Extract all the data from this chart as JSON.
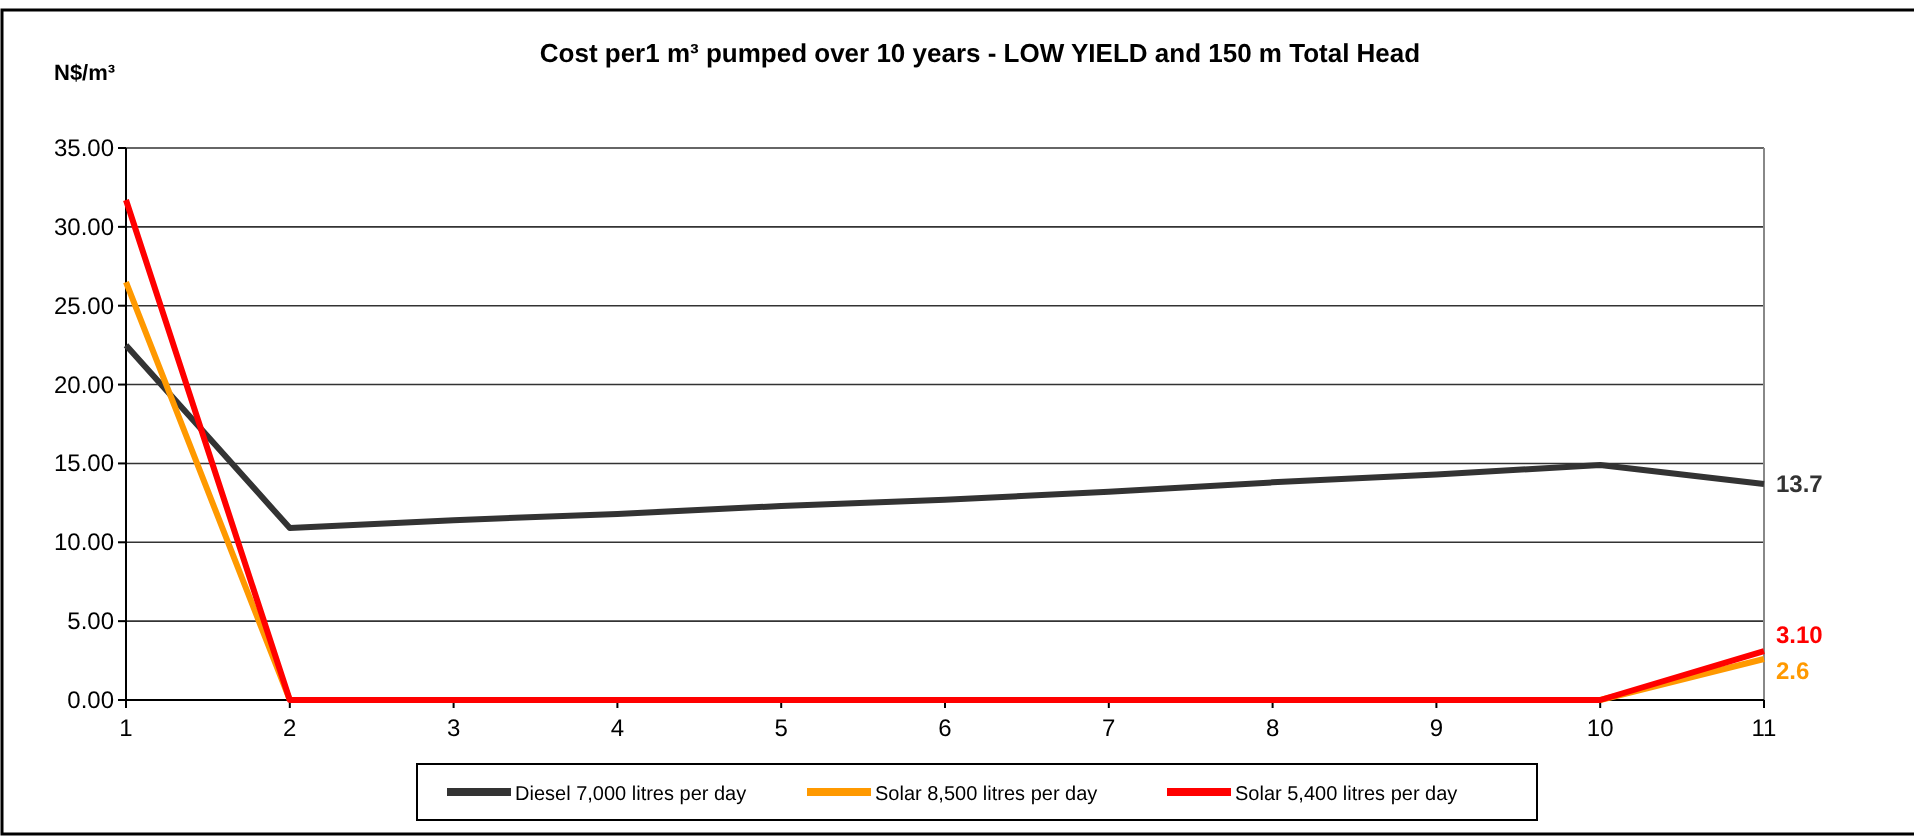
{
  "chart_data": {
    "type": "line",
    "title": "Cost per1 m³ pumped over 10 years - LOW YIELD and 150 m Total Head",
    "ylabel": "N$/m³",
    "x": [
      1,
      2,
      3,
      4,
      5,
      6,
      7,
      8,
      9,
      10,
      11
    ],
    "xlim": [
      1,
      11
    ],
    "xticks": [
      1,
      2,
      3,
      4,
      5,
      6,
      7,
      8,
      9,
      10,
      11
    ],
    "ylim": [
      0,
      35
    ],
    "yticks": [
      {
        "value": 0,
        "label": "0.00"
      },
      {
        "value": 5,
        "label": "5.00"
      },
      {
        "value": 10,
        "label": "10.00"
      },
      {
        "value": 15,
        "label": "15.00"
      },
      {
        "value": 20,
        "label": "20.00"
      },
      {
        "value": 25,
        "label": "25.00"
      },
      {
        "value": 30,
        "label": "30.00"
      },
      {
        "value": 35,
        "label": "35.00"
      }
    ],
    "grid": "y",
    "legend": "bottom",
    "marker": "none",
    "line_style": "solid",
    "series": [
      {
        "name": "Diesel 7,000 litres per day",
        "color": "#333333",
        "values": [
          22.5,
          10.9,
          11.4,
          11.8,
          12.3,
          12.7,
          13.2,
          13.8,
          14.3,
          14.9,
          13.7
        ],
        "value_labels": [
          null,
          null,
          null,
          null,
          null,
          null,
          null,
          null,
          null,
          null,
          "13.7"
        ]
      },
      {
        "name": "Solar 8,500 litres per day",
        "color": "#ff9900",
        "values": [
          26.5,
          0,
          null,
          null,
          null,
          null,
          null,
          null,
          null,
          0,
          2.6
        ],
        "value_labels": [
          null,
          null,
          null,
          null,
          null,
          null,
          null,
          null,
          null,
          null,
          "2.6"
        ]
      },
      {
        "name": "Solar 5,400 litres per day",
        "color": "#ff0000",
        "values": [
          31.7,
          0,
          0,
          0,
          0,
          0,
          0,
          0,
          0,
          0,
          3.1
        ],
        "value_labels": [
          null,
          null,
          null,
          null,
          null,
          null,
          null,
          null,
          null,
          null,
          "3.10"
        ]
      }
    ]
  }
}
